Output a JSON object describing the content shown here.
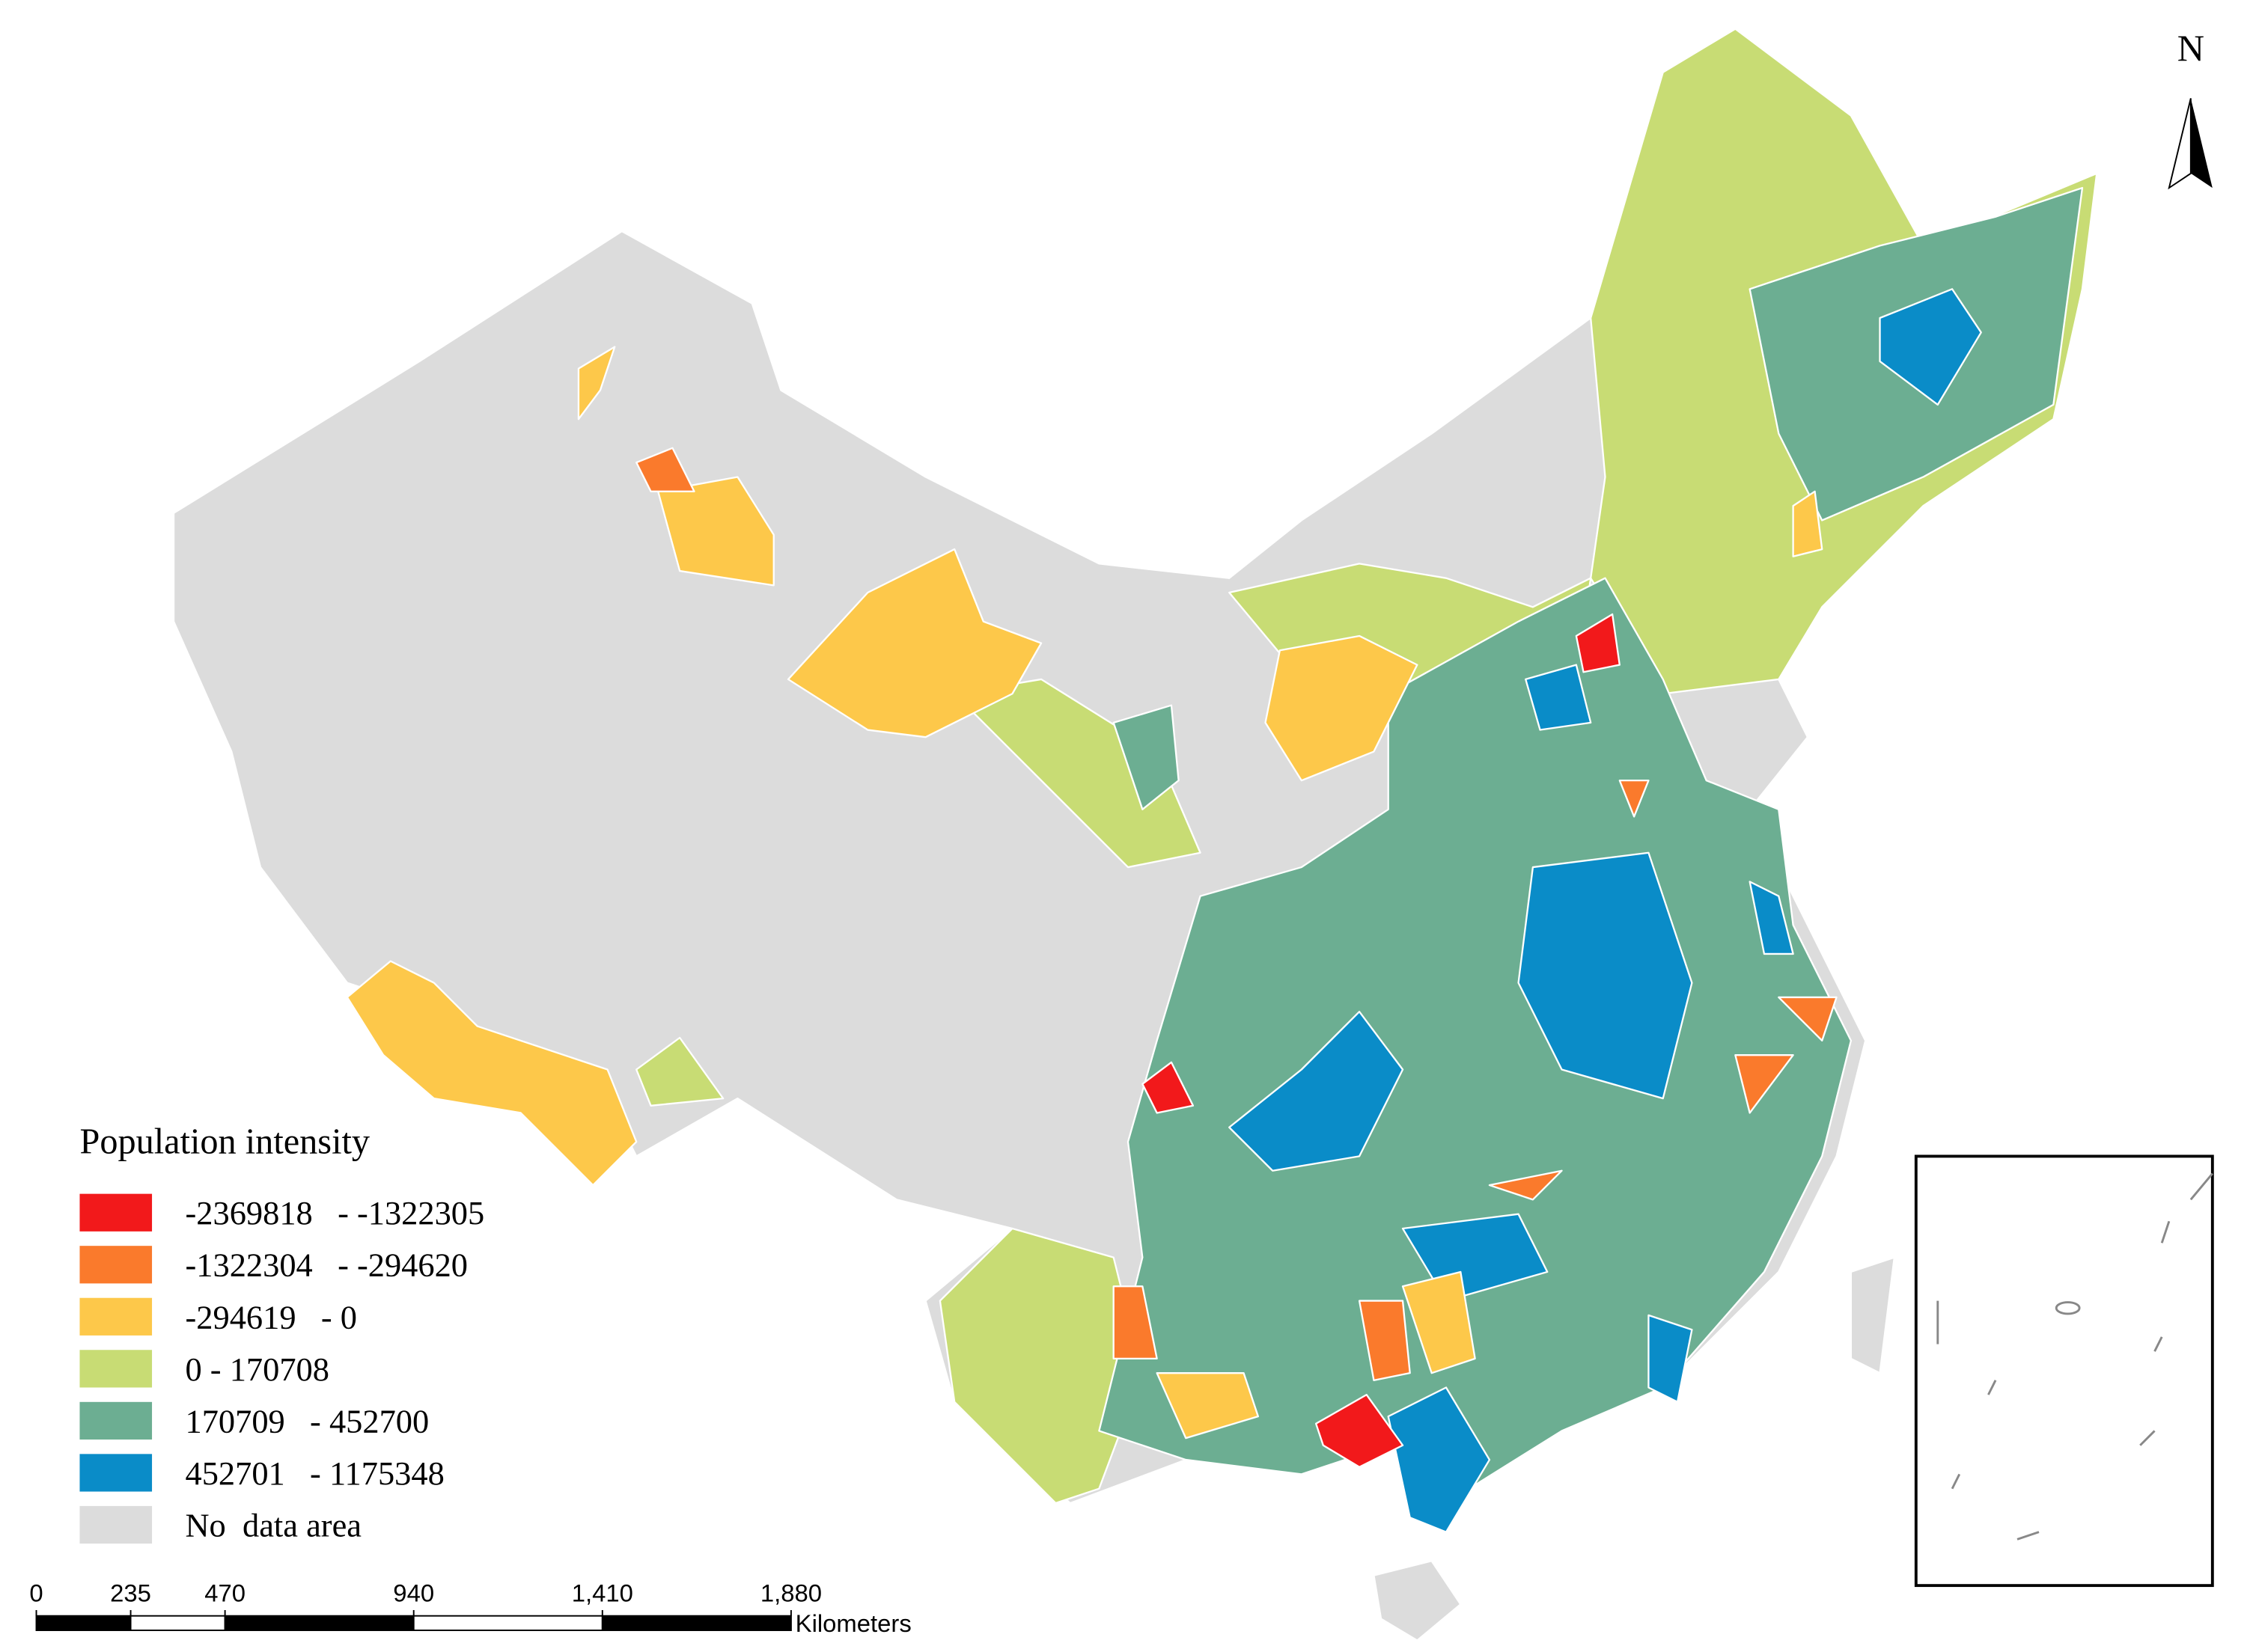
{
  "legend": {
    "title": "Population intensity",
    "items": [
      {
        "label": "-2369818   - -1322305",
        "color": "#f2191b"
      },
      {
        "label": "-1322304   - -294620",
        "color": "#fa7a2c"
      },
      {
        "label": "-294619   - 0",
        "color": "#fdc84a"
      },
      {
        "label": "0 - 170708",
        "color": "#c8dc74"
      },
      {
        "label": "170709   - 452700",
        "color": "#6cae92"
      },
      {
        "label": "452701   - 1175348",
        "color": "#0a8cc8"
      },
      {
        "label": "No  data area",
        "color": "#dcdcdc"
      }
    ]
  },
  "north_arrow": {
    "label": "N"
  },
  "scale_bar": {
    "unit": "Kilometers",
    "ticks": [
      0,
      235,
      470,
      940,
      {
        "value": 1410,
        "label": "1,410"
      },
      {
        "value": 1880,
        "label": "1,880"
      }
    ]
  }
}
